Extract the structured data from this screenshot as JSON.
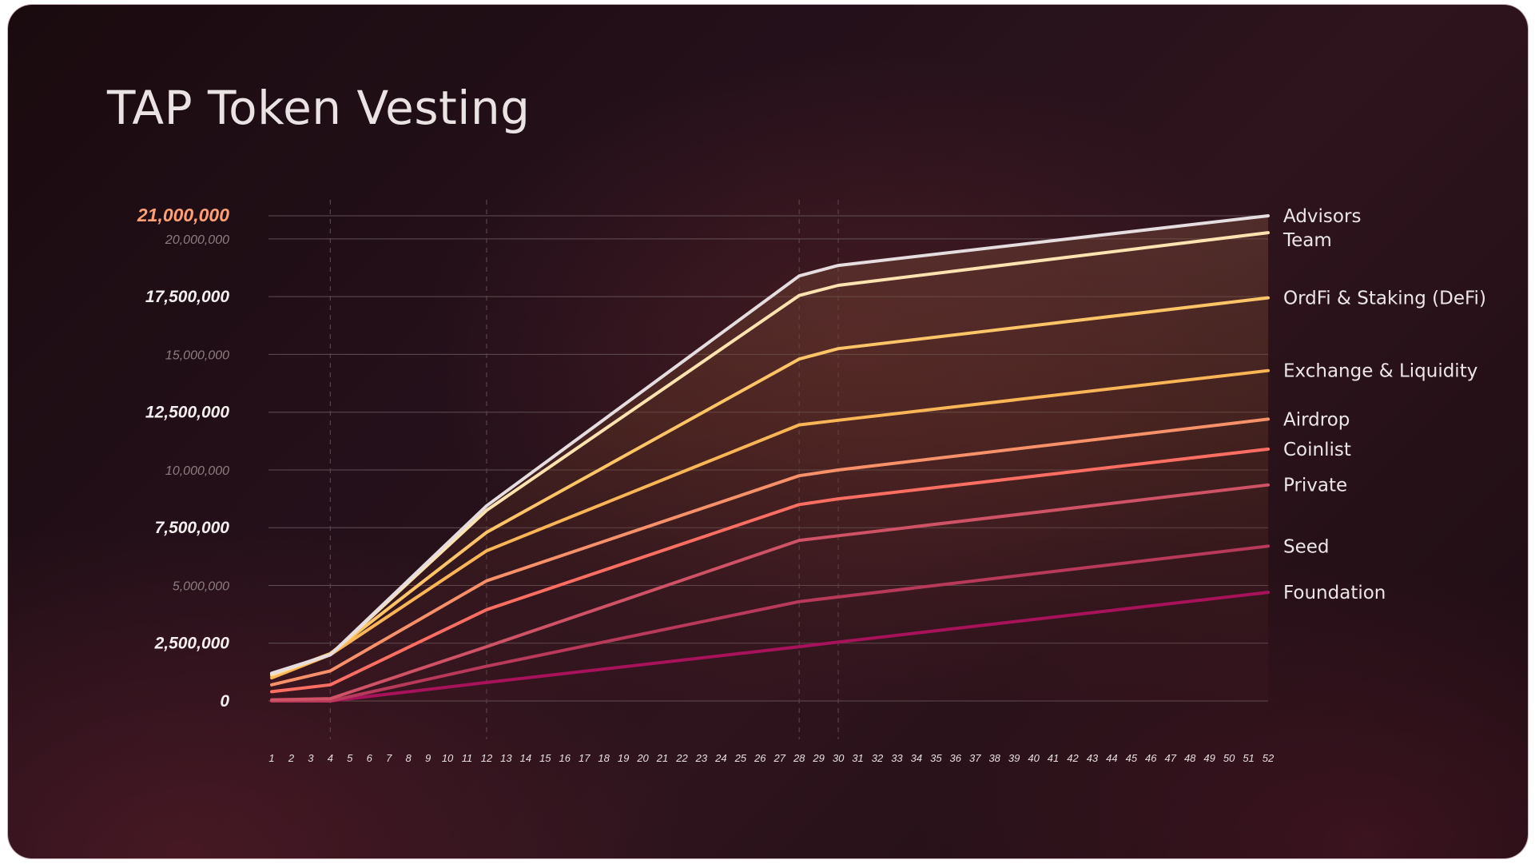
{
  "chart_data": {
    "type": "line",
    "title": "TAP Token Vesting",
    "xlabel": "",
    "ylabel": "",
    "x": [
      1,
      2,
      3,
      4,
      5,
      6,
      7,
      8,
      9,
      10,
      11,
      12,
      13,
      14,
      15,
      16,
      17,
      18,
      19,
      20,
      21,
      22,
      23,
      24,
      25,
      26,
      27,
      28,
      29,
      30,
      31,
      32,
      33,
      34,
      35,
      36,
      37,
      38,
      39,
      40,
      41,
      42,
      43,
      44,
      45,
      46,
      47,
      48,
      49,
      50,
      51,
      52
    ],
    "xlim": [
      1,
      52
    ],
    "ylim": [
      0,
      21000000
    ],
    "y_ticks": [
      {
        "value": 21000000,
        "label": "21,000,000",
        "style": "top"
      },
      {
        "value": 20000000,
        "label": "20,000,000",
        "style": "minor"
      },
      {
        "value": 17500000,
        "label": "17,500,000",
        "style": "major"
      },
      {
        "value": 15000000,
        "label": "15,000,000",
        "style": "minor"
      },
      {
        "value": 12500000,
        "label": "12,500,000",
        "style": "major"
      },
      {
        "value": 10000000,
        "label": "10,000,000",
        "style": "minor"
      },
      {
        "value": 7500000,
        "label": "7,500,000",
        "style": "major"
      },
      {
        "value": 5000000,
        "label": "5,000,000",
        "style": "minor"
      },
      {
        "value": 2500000,
        "label": "2,500,000",
        "style": "major"
      },
      {
        "value": 0,
        "label": "0",
        "style": "major"
      }
    ],
    "vertical_markers": [
      4,
      12,
      28,
      30
    ],
    "grid": true,
    "legend_position": "right, labels at line ends",
    "series": [
      {
        "name": "Foundation",
        "color": "#a8125a",
        "points": [
          [
            1,
            0
          ],
          [
            4,
            0
          ],
          [
            12,
            800000
          ],
          [
            28,
            2350000
          ],
          [
            30,
            2550000
          ],
          [
            52,
            4700000
          ]
        ]
      },
      {
        "name": "Seed",
        "color": "#b8395a",
        "points": [
          [
            1,
            0
          ],
          [
            4,
            0
          ],
          [
            12,
            1500000
          ],
          [
            28,
            4300000
          ],
          [
            30,
            4500000
          ],
          [
            52,
            6700000
          ]
        ]
      },
      {
        "name": "Private",
        "color": "#cf5266",
        "points": [
          [
            1,
            50000
          ],
          [
            4,
            100000
          ],
          [
            12,
            2350000
          ],
          [
            28,
            6950000
          ],
          [
            30,
            7150000
          ],
          [
            52,
            9350000
          ]
        ]
      },
      {
        "name": "Coinlist",
        "color": "#ff6e62",
        "points": [
          [
            1,
            400000
          ],
          [
            4,
            700000
          ],
          [
            12,
            3950000
          ],
          [
            28,
            8500000
          ],
          [
            30,
            8750000
          ],
          [
            52,
            10900000
          ]
        ]
      },
      {
        "name": "Airdrop",
        "color": "#f8916a",
        "points": [
          [
            1,
            700000
          ],
          [
            4,
            1300000
          ],
          [
            12,
            5200000
          ],
          [
            28,
            9750000
          ],
          [
            30,
            10000000
          ],
          [
            52,
            12200000
          ]
        ]
      },
      {
        "name": "Exchange & Liquidity",
        "color": "#fab557",
        "points": [
          [
            1,
            1000000
          ],
          [
            4,
            2000000
          ],
          [
            12,
            6500000
          ],
          [
            28,
            11950000
          ],
          [
            30,
            12150000
          ],
          [
            52,
            14300000
          ]
        ]
      },
      {
        "name": "OrdFi & Staking (DeFi)",
        "color": "#fdc468",
        "points": [
          [
            1,
            1100000
          ],
          [
            4,
            2050000
          ],
          [
            12,
            7300000
          ],
          [
            28,
            14800000
          ],
          [
            30,
            15250000
          ],
          [
            52,
            17450000
          ]
        ]
      },
      {
        "name": "Team",
        "color": "#fde3b0",
        "points": [
          [
            1,
            1150000
          ],
          [
            4,
            2000000
          ],
          [
            12,
            8250000
          ],
          [
            28,
            17550000
          ],
          [
            30,
            17990000
          ],
          [
            52,
            20270000
          ]
        ]
      },
      {
        "name": "Advisors",
        "color": "#e6dde0",
        "points": [
          [
            1,
            1200000
          ],
          [
            4,
            2000000
          ],
          [
            12,
            8450000
          ],
          [
            28,
            18400000
          ],
          [
            30,
            18850000
          ],
          [
            52,
            21000000
          ]
        ]
      }
    ]
  },
  "colors": {
    "background": "#24101a",
    "gridline": "#6f5f62",
    "marker_line": "#5c4247",
    "accent": "#ff9f73",
    "area_fill": "#6a3a2c"
  }
}
